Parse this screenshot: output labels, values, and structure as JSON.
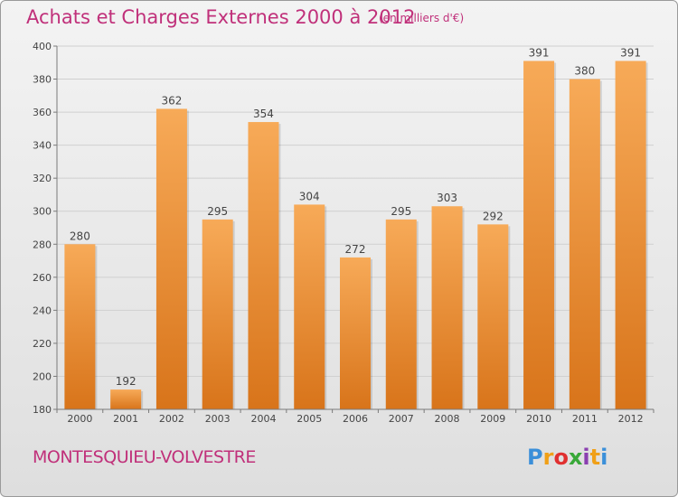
{
  "header": {
    "title": "Achats et Charges Externes 2000 à 2012",
    "unit": "(en milliers d'€)"
  },
  "footer": {
    "commune": "MONTESQUIEU-VOLVESTRE",
    "logo": {
      "letters": [
        "P",
        "r",
        "o",
        "x",
        "i",
        "t",
        "i"
      ],
      "colors": [
        "#3b8fd9",
        "#f0a018",
        "#e03030",
        "#38a838",
        "#8a3fb0",
        "#f0a018",
        "#3b8fd9"
      ]
    }
  },
  "chart_data": {
    "type": "bar",
    "categories": [
      "2000",
      "2001",
      "2002",
      "2003",
      "2004",
      "2005",
      "2006",
      "2007",
      "2008",
      "2009",
      "2010",
      "2011",
      "2012"
    ],
    "values": [
      280,
      192,
      362,
      295,
      354,
      304,
      272,
      295,
      303,
      292,
      391,
      380,
      391
    ],
    "data_labels": [
      "280",
      "192",
      "362",
      "295",
      "354",
      "304",
      "272",
      "295",
      "303",
      "292",
      "391",
      "380",
      "391"
    ],
    "title": "Achats et Charges Externes 2000 à 2012",
    "ylim": [
      180,
      400
    ],
    "yticks": [
      180,
      200,
      220,
      240,
      260,
      280,
      300,
      320,
      340,
      360,
      380,
      400
    ],
    "ytick_labels": [
      "180",
      "200",
      "220",
      "240",
      "260",
      "280",
      "300",
      "320",
      "340",
      "360",
      "380",
      "400"
    ],
    "grid": true,
    "colors": {
      "bar": "#f08a24",
      "bar_light": "#f7aa58",
      "bar_dark": "#d8741a",
      "grid": "#d0d0d0",
      "axis": "#7a7a7a"
    }
  }
}
